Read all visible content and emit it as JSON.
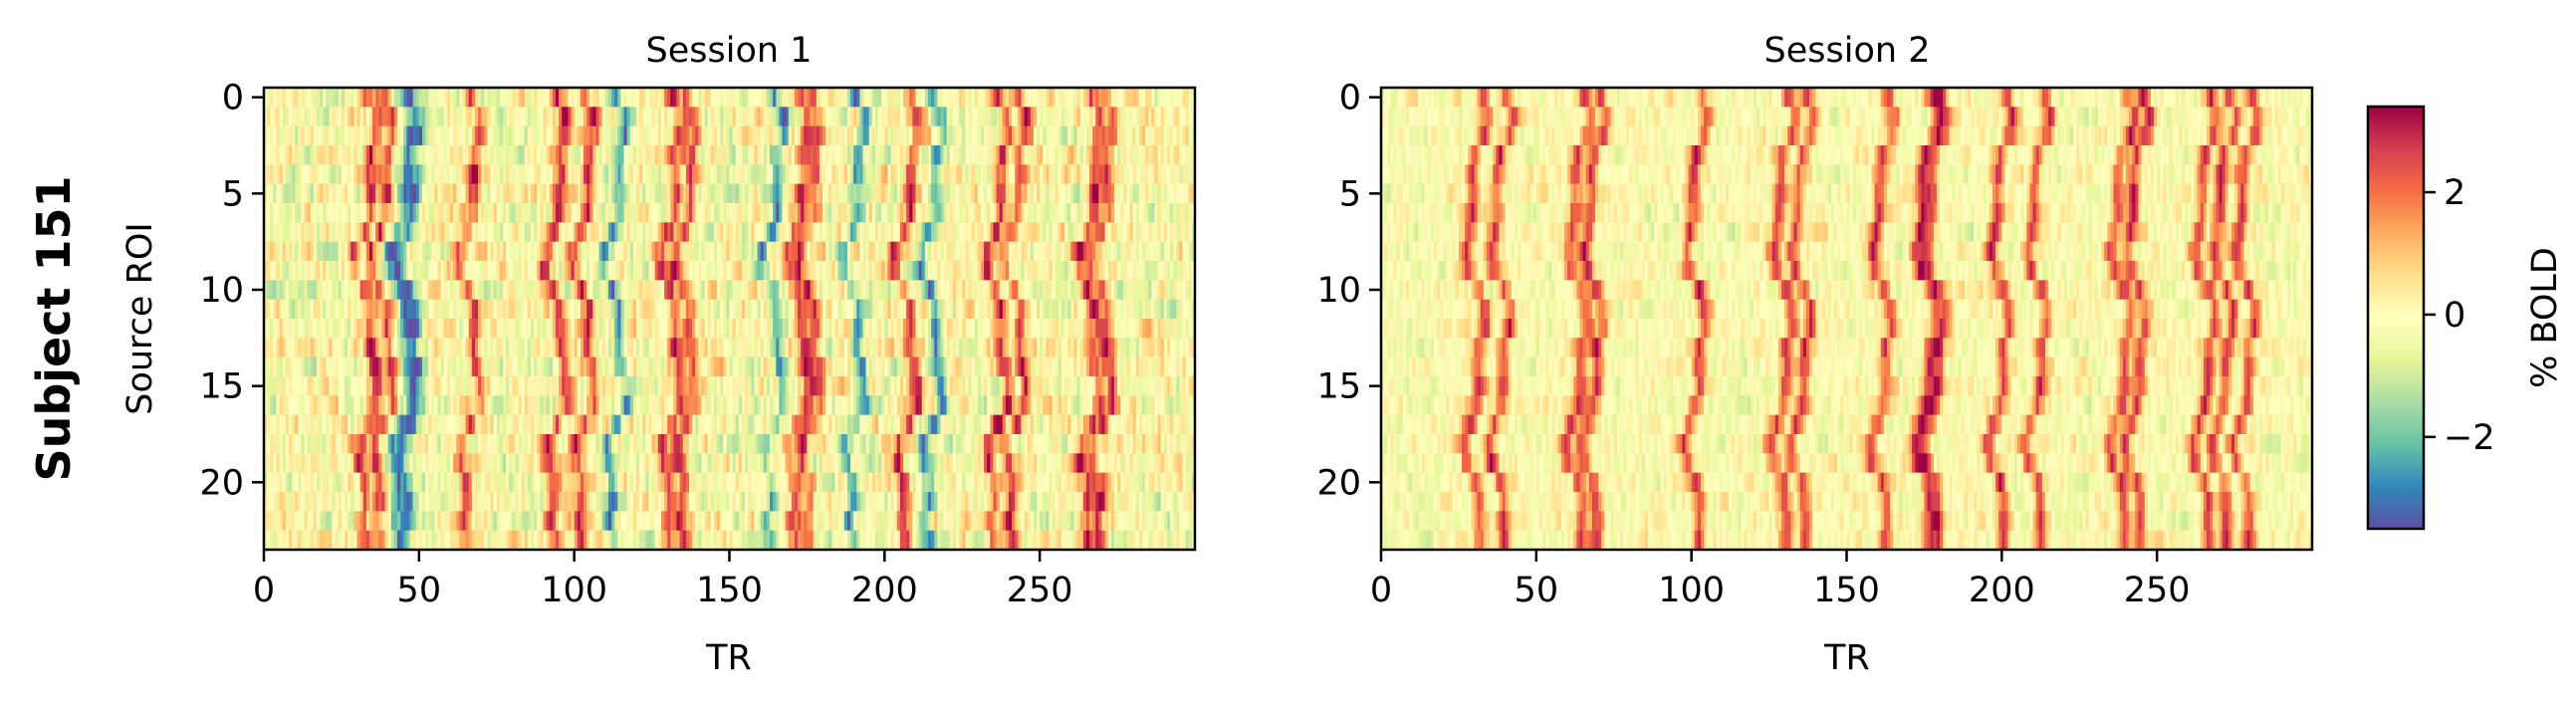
{
  "figure": {
    "row_label": "Subject 151"
  },
  "colors": {
    "colormap": "Spectral_r",
    "stops": [
      "#5e4fa2",
      "#3288bd",
      "#66c2a5",
      "#abdda4",
      "#e6f598",
      "#ffffbf",
      "#fee08b",
      "#fdae61",
      "#f46d43",
      "#d53e4f",
      "#9e0142"
    ]
  },
  "chart_data": [
    {
      "type": "heatmap",
      "title": "Session 1",
      "xlabel": "TR",
      "ylabel": "Source ROI",
      "xlim": [
        0,
        300
      ],
      "ylim": [
        24,
        0
      ],
      "xticks": [
        0,
        50,
        100,
        150,
        200,
        250
      ],
      "yticks": [
        0,
        5,
        10,
        15,
        20
      ],
      "n_rows": 24,
      "n_cols": 300,
      "event_peaks_tr": [
        33,
        38,
        66,
        94,
        103,
        131,
        136,
        172,
        176,
        207,
        236,
        242,
        266,
        270
      ],
      "event_troughs_tr": [
        44,
        47,
        113,
        164,
        190,
        215
      ]
    },
    {
      "type": "heatmap",
      "title": "Session 2",
      "xlabel": "TR",
      "ylabel": "",
      "xlim": [
        0,
        300
      ],
      "ylim": [
        24,
        0
      ],
      "xticks": [
        0,
        50,
        100,
        150,
        200,
        250
      ],
      "yticks": [
        0,
        5,
        10,
        15,
        20
      ],
      "n_rows": 24,
      "n_cols": 300,
      "event_peaks_tr": [
        30,
        38,
        63,
        68,
        101,
        129,
        135,
        161,
        175,
        178,
        199,
        211,
        238,
        243,
        265,
        271,
        278
      ],
      "event_troughs_tr": []
    }
  ],
  "colorbar": {
    "label": "% BOLD",
    "range": [
      -3.5,
      3.4
    ],
    "ticks": [
      -2,
      0,
      2
    ],
    "tick_labels": [
      "−2",
      "0",
      "2"
    ]
  }
}
